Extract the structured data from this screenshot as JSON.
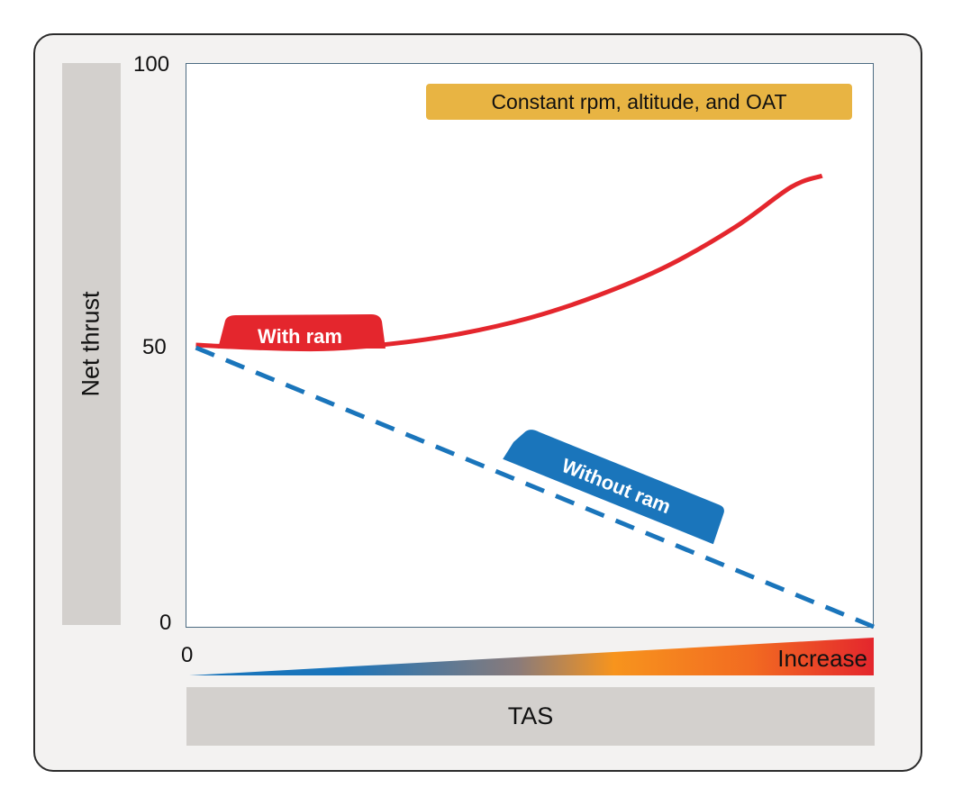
{
  "chart_data": {
    "type": "line",
    "title": "",
    "xlabel": "TAS",
    "ylabel": "Net thrust",
    "ylim": [
      0,
      100
    ],
    "xlim": [
      0,
      100
    ],
    "y_ticks": [
      "100",
      "50",
      "0"
    ],
    "x_ticks": [
      "0"
    ],
    "x_scale_label": "Increase",
    "annotation": "Constant rpm, altitude, and OAT",
    "grid": false,
    "series": [
      {
        "name": "With ram",
        "color": "#e4262d",
        "style": "solid",
        "x": [
          1.5,
          10,
          20,
          30,
          40,
          50,
          60,
          70,
          80,
          88,
          92.5
        ],
        "y": [
          50,
          49.5,
          49.3,
          50.2,
          52,
          54.8,
          58.8,
          64,
          71,
          78,
          80
        ]
      },
      {
        "name": "Without ram",
        "color": "#1a75bb",
        "style": "dashed",
        "x": [
          1.5,
          100
        ],
        "y": [
          49.5,
          0
        ]
      }
    ]
  },
  "colors": {
    "frame_background": "#f3f2f1",
    "label_box": "#d3d0cd",
    "annotation_box": "#e8b443",
    "gradient_start": "#1a75bb",
    "gradient_mid": "#f7941d",
    "gradient_end": "#e4262d"
  }
}
